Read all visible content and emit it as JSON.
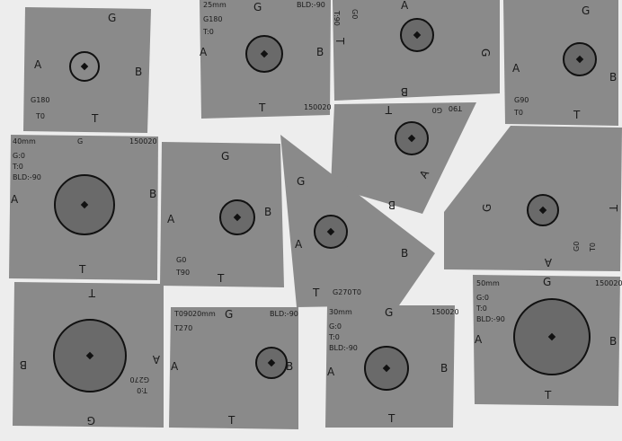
{
  "photo": {
    "background": "#ededed",
    "paper_color": "#8a8a8a",
    "ink_color": "#111111",
    "samples": [
      {
        "id": "s1",
        "labels": [
          "G",
          "A",
          "B",
          "T",
          "G180",
          "T0"
        ]
      },
      {
        "id": "s2",
        "labels": [
          "25mm",
          "G",
          "BLD:-90",
          "G180",
          "T:0",
          "A",
          "B",
          "T",
          "150020"
        ]
      },
      {
        "id": "s3",
        "labels": [
          "A",
          "T",
          "G",
          "B",
          "T:90",
          "G0"
        ]
      },
      {
        "id": "s4",
        "labels": [
          "G",
          "A",
          "B",
          "T",
          "G90",
          "T0"
        ]
      },
      {
        "id": "s5",
        "labels": [
          "T",
          "G0",
          "T90",
          "B",
          "A"
        ]
      },
      {
        "id": "s6",
        "labels": [
          "40mm",
          "G",
          "150020",
          "G:0",
          "T:0",
          "BLD:-90",
          "A",
          "B",
          "T"
        ]
      },
      {
        "id": "s7",
        "labels": [
          "G",
          "A",
          "B",
          "G0",
          "T90",
          "T"
        ]
      },
      {
        "id": "s8",
        "labels": [
          "G",
          "A",
          "B",
          "T",
          "G270",
          "T0"
        ]
      },
      {
        "id": "s9",
        "labels": [
          "G",
          "T",
          "A",
          "G0",
          "T0"
        ]
      },
      {
        "id": "s10",
        "labels": [
          "T",
          "B",
          "A",
          "G270",
          "T:0",
          "G"
        ]
      },
      {
        "id": "s11",
        "labels": [
          "T090",
          "20mm",
          "G",
          "BLD:-90",
          "T270",
          "A",
          "B",
          "T"
        ]
      },
      {
        "id": "s12",
        "labels": [
          "30mm",
          "G",
          "150020",
          "G:0",
          "T:0",
          "BLD:-90",
          "A",
          "B",
          "T"
        ]
      },
      {
        "id": "s13",
        "labels": [
          "50mm",
          "G",
          "150020",
          "G:0",
          "T:0",
          "BLD:-90",
          "A",
          "B",
          "T"
        ]
      }
    ]
  }
}
